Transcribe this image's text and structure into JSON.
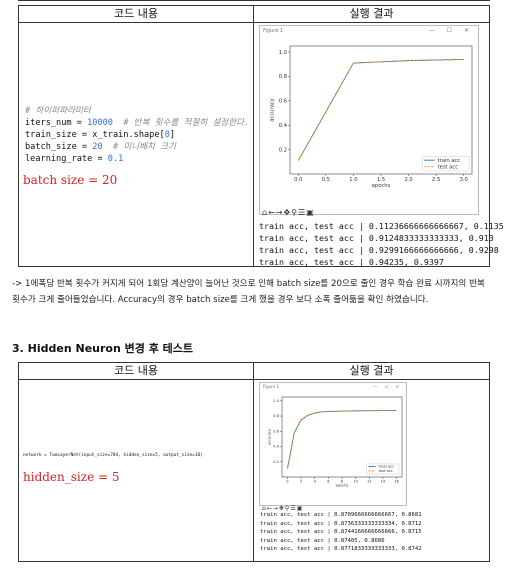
{
  "table1": {
    "header_code": "코드 내용",
    "header_result": "실행 결과",
    "code_lines": [
      {
        "parts": [
          {
            "t": "# 하이퍼파라미터",
            "c": "cmt"
          }
        ]
      },
      {
        "parts": [
          {
            "t": "iters_num = ",
            "c": ""
          },
          {
            "t": "10000",
            "c": "num"
          },
          {
            "t": "  # 반복 횟수를 적절히 설정한다.",
            "c": "cmt"
          }
        ]
      },
      {
        "parts": [
          {
            "t": "train_size = x_train.shape[",
            "c": ""
          },
          {
            "t": "0",
            "c": "num"
          },
          {
            "t": "]",
            "c": ""
          }
        ]
      },
      {
        "parts": [
          {
            "t": "batch_size = ",
            "c": ""
          },
          {
            "t": "20",
            "c": "num"
          },
          {
            "t": "  # 미니배치 크기",
            "c": "cmt"
          }
        ]
      },
      {
        "parts": [
          {
            "t": "learning_rate = ",
            "c": ""
          },
          {
            "t": "0.1",
            "c": "num"
          }
        ]
      }
    ],
    "annotation": "batch size = 20",
    "figure_title": "Figure 1",
    "toolbar_icons": [
      "home-icon",
      "back-icon",
      "forward-icon",
      "pan-icon",
      "zoom-icon",
      "subplots-icon",
      "save-icon"
    ],
    "output_lines": [
      "train acc, test acc | 0.11236666666666667, 0.1135",
      "train acc, test acc | 0.9124833333333333, 0.913",
      "train acc, test acc | 0.9299166666666666, 0.9298",
      "train acc, test acc | 0.94235, 0.9397"
    ]
  },
  "paragraph": "-> 1에폭당 반복 횟수가 커지게 되어 1회당 계산양이 늘어난 것으로 인해 batch size를 20으로 줄인 경우 학습 완료 시까지의 반복 횟수가 크게 줄어들었습니다. Accuracy의 경우 batch size를 크게 했을 경우 보다 소폭 줄어듦을 확인 하였습니다.",
  "section_title": "3. Hidden Neuron 변경 후 테스트",
  "table2": {
    "header_code": "코드 내용",
    "header_result": "실행 결과",
    "code_line": "network = TwoLayerNet(input_size=784, hidden_size=5, output_size=10)",
    "annotation": "hidden_size = 5",
    "figure_title": "Figure 1",
    "output_lines": [
      "train acc, test acc | 0.8709666666666667, 0.8681",
      "train acc, test acc | 0.8736333333333334, 0.8712",
      "train acc, test acc | 0.8744166666666666, 0.8715",
      "train acc, test acc | 0.87485, 0.8686",
      "train acc, test acc | 0.8771833333333333, 0.8742"
    ]
  },
  "chart_data": [
    {
      "type": "line",
      "x": [
        0,
        1,
        2,
        3
      ],
      "series": [
        {
          "name": "train acc",
          "values": [
            0.11,
            0.91,
            0.93,
            0.94
          ],
          "color": "#1f77b4"
        },
        {
          "name": "test acc",
          "values": [
            0.11,
            0.91,
            0.93,
            0.94
          ],
          "color": "#ff7f0e"
        }
      ],
      "xlabel": "epochs",
      "ylabel": "accuracy",
      "xticks": [
        "0.0",
        "0.5",
        "1.0",
        "1.5",
        "2.0",
        "2.5",
        "3.0"
      ],
      "yticks": [
        "0.2",
        "0.4",
        "0.6",
        "0.8",
        "1.0"
      ],
      "xlim": [
        -0.15,
        3.15
      ],
      "ylim": [
        0,
        1.05
      ],
      "legend": "bottom-right"
    },
    {
      "type": "line",
      "x": [
        0,
        1,
        2,
        3,
        4,
        5,
        6,
        7,
        8,
        9,
        10,
        11,
        12,
        13,
        14,
        15,
        16
      ],
      "series": [
        {
          "name": "train acc",
          "values": [
            0.11,
            0.58,
            0.75,
            0.81,
            0.84,
            0.855,
            0.86,
            0.862,
            0.865,
            0.866,
            0.868,
            0.869,
            0.87,
            0.871,
            0.872,
            0.873,
            0.874
          ],
          "color": "#1f77b4"
        },
        {
          "name": "test acc",
          "values": [
            0.11,
            0.58,
            0.75,
            0.81,
            0.84,
            0.855,
            0.86,
            0.862,
            0.865,
            0.866,
            0.868,
            0.869,
            0.87,
            0.871,
            0.872,
            0.873,
            0.874
          ],
          "color": "#ff7f0e"
        }
      ],
      "xlabel": "epochs",
      "ylabel": "accuracy",
      "xticks": [
        "0",
        "2",
        "4",
        "6",
        "8",
        "10",
        "12",
        "14",
        "16"
      ],
      "yticks": [
        "0.2",
        "0.4",
        "0.6",
        "0.8",
        "1.0"
      ],
      "xlim": [
        -0.8,
        16.8
      ],
      "ylim": [
        0,
        1.05
      ],
      "legend": "bottom-right"
    }
  ]
}
